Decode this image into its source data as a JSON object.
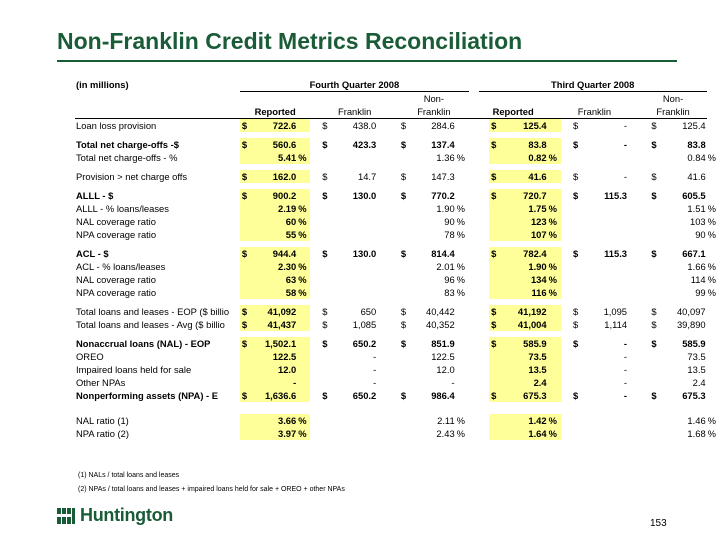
{
  "title": "Non-Franklin Credit Metrics Reconciliation",
  "units_label": "(in millions)",
  "period_q4": "Fourth Quarter 2008",
  "period_q3": "Third Quarter 2008",
  "col_nonfranklin_top": "Non-",
  "col_reported": "Reported",
  "col_franklin": "Franklin",
  "rows": [
    {
      "label": "Loan loss provision",
      "bold": false,
      "v": [
        [
          "$",
          "722.6",
          ""
        ],
        [
          "$",
          "438.0",
          ""
        ],
        [
          "$",
          "284.6",
          ""
        ],
        [
          "$",
          "125.4",
          ""
        ],
        [
          "$",
          "-",
          ""
        ],
        [
          "$",
          "125.4",
          ""
        ]
      ]
    },
    {
      "gap": true
    },
    {
      "label": "Total net charge-offs -$",
      "bold": true,
      "v": [
        [
          "$",
          "560.6",
          ""
        ],
        [
          "$",
          "423.3",
          ""
        ],
        [
          "$",
          "137.4",
          ""
        ],
        [
          "$",
          "83.8",
          ""
        ],
        [
          "$",
          "-",
          ""
        ],
        [
          "$",
          "83.8",
          ""
        ]
      ]
    },
    {
      "label": "Total net charge-offs - %",
      "bold": false,
      "v": [
        [
          "",
          "5.41",
          "%"
        ],
        [
          "",
          "",
          ""
        ],
        [
          "",
          "1.36",
          "%"
        ],
        [
          "",
          "0.82",
          "%"
        ],
        [
          "",
          "",
          ""
        ],
        [
          "",
          "0.84",
          "%"
        ]
      ]
    },
    {
      "gap": true
    },
    {
      "label": "Provision > net charge offs",
      "bold": false,
      "v": [
        [
          "$",
          "162.0",
          ""
        ],
        [
          "$",
          "14.7",
          ""
        ],
        [
          "$",
          "147.3",
          ""
        ],
        [
          "$",
          "41.6",
          ""
        ],
        [
          "$",
          "-",
          ""
        ],
        [
          "$",
          "41.6",
          ""
        ]
      ]
    },
    {
      "gap": true
    },
    {
      "label": "ALLL - $",
      "bold": true,
      "v": [
        [
          "$",
          "900.2",
          ""
        ],
        [
          "$",
          "130.0",
          ""
        ],
        [
          "$",
          "770.2",
          ""
        ],
        [
          "$",
          "720.7",
          ""
        ],
        [
          "$",
          "115.3",
          ""
        ],
        [
          "$",
          "605.5",
          ""
        ]
      ]
    },
    {
      "label": "ALLL - % loans/leases",
      "bold": false,
      "v": [
        [
          "",
          "2.19",
          "%"
        ],
        [
          "",
          "",
          ""
        ],
        [
          "",
          "1.90",
          "%"
        ],
        [
          "",
          "1.75",
          "%"
        ],
        [
          "",
          "",
          ""
        ],
        [
          "",
          "1.51",
          "%"
        ]
      ]
    },
    {
      "label": "NAL coverage ratio",
      "bold": false,
      "v": [
        [
          "",
          "60",
          "%"
        ],
        [
          "",
          "",
          ""
        ],
        [
          "",
          "90",
          "%"
        ],
        [
          "",
          "123",
          "%"
        ],
        [
          "",
          "",
          ""
        ],
        [
          "",
          "103",
          "%"
        ]
      ]
    },
    {
      "label": "NPA coverage ratio",
      "bold": false,
      "v": [
        [
          "",
          "55",
          "%"
        ],
        [
          "",
          "",
          ""
        ],
        [
          "",
          "78",
          "%"
        ],
        [
          "",
          "107",
          "%"
        ],
        [
          "",
          "",
          ""
        ],
        [
          "",
          "90",
          "%"
        ]
      ]
    },
    {
      "gap": true
    },
    {
      "label": "ACL - $",
      "bold": true,
      "v": [
        [
          "$",
          "944.4",
          ""
        ],
        [
          "$",
          "130.0",
          ""
        ],
        [
          "$",
          "814.4",
          ""
        ],
        [
          "$",
          "782.4",
          ""
        ],
        [
          "$",
          "115.3",
          ""
        ],
        [
          "$",
          "667.1",
          ""
        ]
      ]
    },
    {
      "label": "ACL - % loans/leases",
      "bold": false,
      "v": [
        [
          "",
          "2.30",
          "%"
        ],
        [
          "",
          "",
          ""
        ],
        [
          "",
          "2.01",
          "%"
        ],
        [
          "",
          "1.90",
          "%"
        ],
        [
          "",
          "",
          ""
        ],
        [
          "",
          "1.66",
          "%"
        ]
      ]
    },
    {
      "label": "NAL coverage ratio",
      "bold": false,
      "v": [
        [
          "",
          "63",
          "%"
        ],
        [
          "",
          "",
          ""
        ],
        [
          "",
          "96",
          "%"
        ],
        [
          "",
          "134",
          "%"
        ],
        [
          "",
          "",
          ""
        ],
        [
          "",
          "114",
          "%"
        ]
      ]
    },
    {
      "label": "NPA coverage ratio",
      "bold": false,
      "v": [
        [
          "",
          "58",
          "%"
        ],
        [
          "",
          "",
          ""
        ],
        [
          "",
          "83",
          "%"
        ],
        [
          "",
          "116",
          "%"
        ],
        [
          "",
          "",
          ""
        ],
        [
          "",
          "99",
          "%"
        ]
      ]
    },
    {
      "gap": true
    },
    {
      "label": "Total loans and leases - EOP ($ billio",
      "bold": false,
      "v": [
        [
          "$",
          "41,092",
          ""
        ],
        [
          "$",
          "650",
          ""
        ],
        [
          "$",
          "40,442",
          ""
        ],
        [
          "$",
          "41,192",
          ""
        ],
        [
          "$",
          "1,095",
          ""
        ],
        [
          "$",
          "40,097",
          ""
        ]
      ]
    },
    {
      "label": "Total loans and leases - Avg ($ billio",
      "bold": false,
      "v": [
        [
          "$",
          "41,437",
          ""
        ],
        [
          "$",
          "1,085",
          ""
        ],
        [
          "$",
          "40,352",
          ""
        ],
        [
          "$",
          "41,004",
          ""
        ],
        [
          "$",
          "1,114",
          ""
        ],
        [
          "$",
          "39,890",
          ""
        ]
      ]
    },
    {
      "gap": true
    },
    {
      "label": "Nonaccrual loans (NAL) - EOP",
      "bold": true,
      "v": [
        [
          "$",
          "1,502.1",
          ""
        ],
        [
          "$",
          "650.2",
          ""
        ],
        [
          "$",
          "851.9",
          ""
        ],
        [
          "$",
          "585.9",
          ""
        ],
        [
          "$",
          "-",
          ""
        ],
        [
          "$",
          "585.9",
          ""
        ]
      ]
    },
    {
      "label": "OREO",
      "bold": false,
      "v": [
        [
          "",
          "122.5",
          ""
        ],
        [
          "",
          "-",
          ""
        ],
        [
          "",
          "122.5",
          ""
        ],
        [
          "",
          "73.5",
          ""
        ],
        [
          "",
          "-",
          ""
        ],
        [
          "",
          "73.5",
          ""
        ]
      ]
    },
    {
      "label": "Impaired loans held for sale",
      "bold": false,
      "v": [
        [
          "",
          "12.0",
          ""
        ],
        [
          "",
          "-",
          ""
        ],
        [
          "",
          "12.0",
          ""
        ],
        [
          "",
          "13.5",
          ""
        ],
        [
          "",
          "-",
          ""
        ],
        [
          "",
          "13.5",
          ""
        ]
      ]
    },
    {
      "label": "Other NPAs",
      "bold": false,
      "v": [
        [
          "",
          "-",
          ""
        ],
        [
          "",
          "-",
          ""
        ],
        [
          "",
          "-",
          ""
        ],
        [
          "",
          "2.4",
          ""
        ],
        [
          "",
          "-",
          ""
        ],
        [
          "",
          "2.4",
          ""
        ]
      ]
    },
    {
      "label": "Nonperforming assets (NPA) - E",
      "bold": true,
      "v": [
        [
          "$",
          "1,636.6",
          ""
        ],
        [
          "$",
          "650.2",
          ""
        ],
        [
          "$",
          "986.4",
          ""
        ],
        [
          "$",
          "675.3",
          ""
        ],
        [
          "$",
          "-",
          ""
        ],
        [
          "$",
          "675.3",
          ""
        ]
      ]
    },
    {
      "gap": true
    },
    {
      "gap": true
    },
    {
      "label": "NAL ratio (1)",
      "bold": false,
      "v": [
        [
          "",
          "3.66",
          "%"
        ],
        [
          "",
          "",
          ""
        ],
        [
          "",
          "2.11",
          "%"
        ],
        [
          "",
          "1.42",
          "%"
        ],
        [
          "",
          "",
          ""
        ],
        [
          "",
          "1.46",
          "%"
        ]
      ]
    },
    {
      "label": "NPA ratio (2)",
      "bold": false,
      "v": [
        [
          "",
          "3.97",
          "%"
        ],
        [
          "",
          "",
          ""
        ],
        [
          "",
          "2.43",
          "%"
        ],
        [
          "",
          "1.64",
          "%"
        ],
        [
          "",
          "",
          ""
        ],
        [
          "",
          "1.68",
          "%"
        ]
      ]
    }
  ],
  "footnote_1": "(1) NALs / total loans and leases",
  "footnote_2": "(2) NPAs / total loans and leases + impaired loans held for sale + OREO + other NPAs",
  "logo_text": "Huntington",
  "page_number": "153",
  "colors": {
    "title": "#1a5c37",
    "highlight": "#ffff99"
  }
}
